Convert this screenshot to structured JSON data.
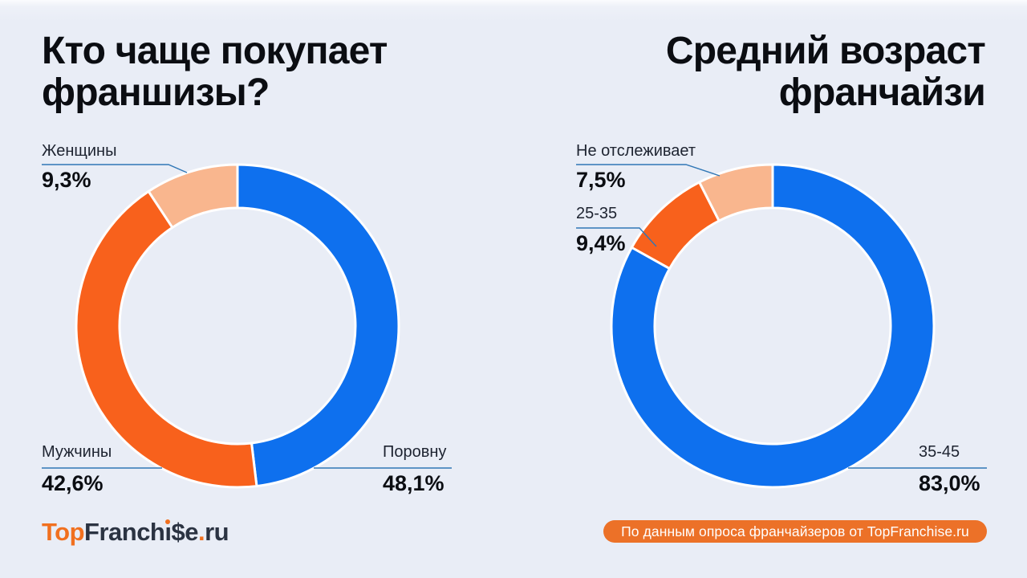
{
  "page": {
    "background": "#e9edf6"
  },
  "left_chart": {
    "title": "Кто чаще покупает\nфраншизы?"
  },
  "right_chart": {
    "title": "Средний возраст\nфранчайзи"
  },
  "chart_data": [
    {
      "type": "pie",
      "subtype": "donut",
      "title": "Кто чаще покупает франшизы?",
      "start_angle": "12-oclock",
      "direction": "clockwise",
      "slices": [
        {
          "label": "Поровну",
          "value": 48.1,
          "value_label": "48,1%",
          "color": "#0e70ee"
        },
        {
          "label": "Мужчины",
          "value": 42.6,
          "value_label": "42,6%",
          "color": "#f8611c"
        },
        {
          "label": "Женщины",
          "value": 9.3,
          "value_label": "9,3%",
          "color": "#f9b68e"
        }
      ]
    },
    {
      "type": "pie",
      "subtype": "donut",
      "title": "Средний возраст франчайзи",
      "start_angle": "12-oclock",
      "direction": "clockwise",
      "slices": [
        {
          "label": "35-45",
          "value": 83.0,
          "value_label": "83,0%",
          "color": "#0e70ee"
        },
        {
          "label": "25-35",
          "value": 9.4,
          "value_label": "9,4%",
          "color": "#f8611c"
        },
        {
          "label": "Не отслеживает",
          "value": 7.5,
          "value_label": "7,5%",
          "color": "#f9b68e"
        }
      ]
    }
  ],
  "logo": {
    "part_top": "Top",
    "part_franch": "Franch",
    "part_i": "ı",
    "part_se": "$e",
    "part_dot": ".",
    "part_ru": "ru",
    "accent_color": "#f1701f"
  },
  "badge": {
    "text": "По данным опроса франчайзеров от TopFranchise.ru",
    "background": "#ec7128"
  },
  "style": {
    "leader_line_color": "#3077b6",
    "slice_separator_color": "#ffffff"
  }
}
